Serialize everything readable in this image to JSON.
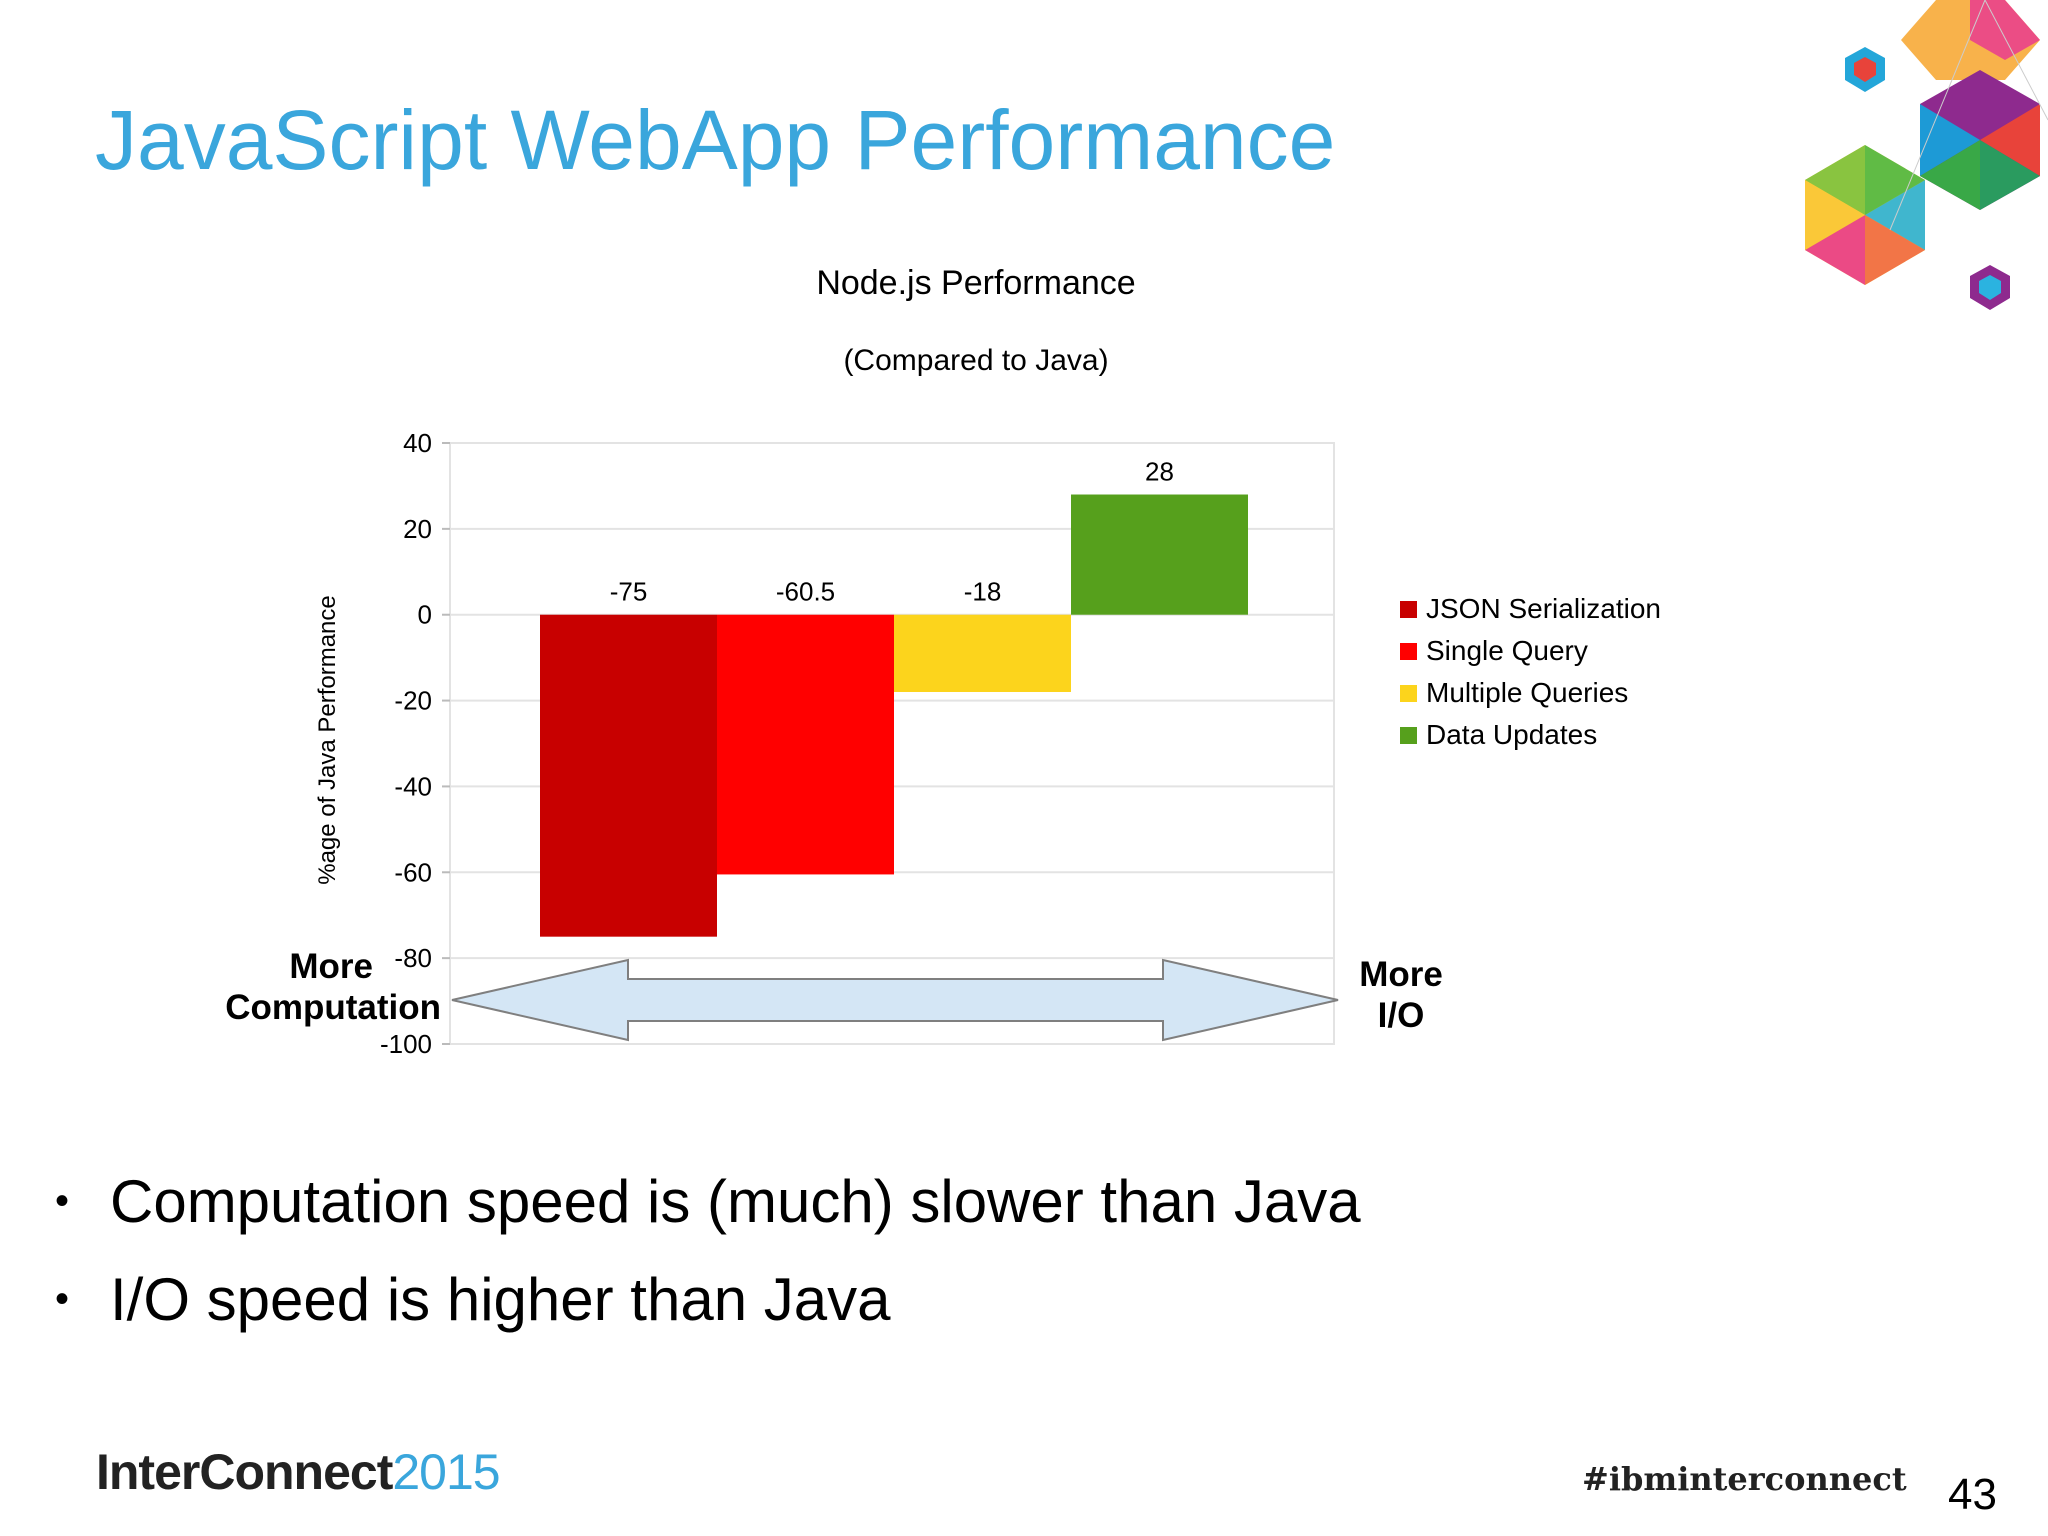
{
  "slide": {
    "title": "JavaScript WebApp Performance",
    "bullets": [
      "Computation speed is (much) slower than Java",
      "I/O speed is higher than Java"
    ],
    "footer": {
      "brand": "InterConnect",
      "year": "2015",
      "hashtag": "#ibminterconnect",
      "page_number": "43"
    },
    "annotations": {
      "left": [
        "More",
        "Computation"
      ],
      "right": [
        "More",
        "I/O"
      ]
    }
  },
  "chart_data": {
    "type": "bar",
    "title": "Node.js Performance",
    "subtitle": "(Compared to Java)",
    "xlabel": "",
    "ylabel": "%age of Java Performance",
    "ylim": [
      -100,
      40
    ],
    "yticks": [
      40,
      20,
      0,
      -20,
      -40,
      -60,
      -80,
      -100
    ],
    "grid": true,
    "legend_position": "right",
    "series": [
      {
        "name": "JSON Serialization",
        "values": [
          -75
        ],
        "label": "-75",
        "color": "#c80000"
      },
      {
        "name": "Single Query",
        "values": [
          -60.5
        ],
        "label": "-60.5",
        "color": "#ff0000"
      },
      {
        "name": "Multiple Queries",
        "values": [
          -18
        ],
        "label": "-18",
        "color": "#fcd41c"
      },
      {
        "name": "Data Updates",
        "values": [
          28
        ],
        "label": "28",
        "color": "#56a01c"
      }
    ]
  }
}
